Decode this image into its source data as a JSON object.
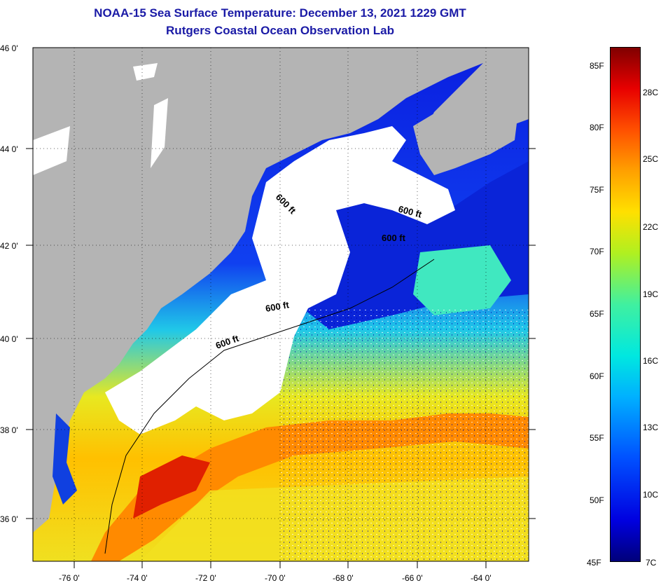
{
  "title": {
    "line1": "NOAA-15 Sea Surface Temperature:  December 13, 2021 1229 GMT",
    "line2": "Rutgers Coastal Ocean Observation Lab"
  },
  "axes": {
    "lat_labels": [
      "46 0'",
      "44 0'",
      "42 0'",
      "40 0'",
      "38 0'",
      "36 0'"
    ],
    "lon_labels": [
      "-76 0'",
      "-74 0'",
      "-72 0'",
      "-70 0'",
      "-68 0'",
      "-66 0'",
      "-64 0'"
    ]
  },
  "contours": {
    "label_a": "600 ft",
    "label_b": "600 ft",
    "label_c": "600 ft",
    "label_d": "600 ft",
    "label_e": "600 ft"
  },
  "colorbar": {
    "fahrenheit": [
      "85F",
      "80F",
      "75F",
      "70F",
      "65F",
      "60F",
      "55F",
      "50F",
      "45F"
    ],
    "celsius": [
      "28C",
      "25C",
      "22C",
      "19C",
      "16C",
      "13C",
      "10C",
      "7C"
    ]
  },
  "colors": {
    "land": "#b4b4b4",
    "cloud": "#ffffff",
    "cold": "#0a1ee0",
    "warm": "#ff8000",
    "title": "#1a1aa6"
  }
}
